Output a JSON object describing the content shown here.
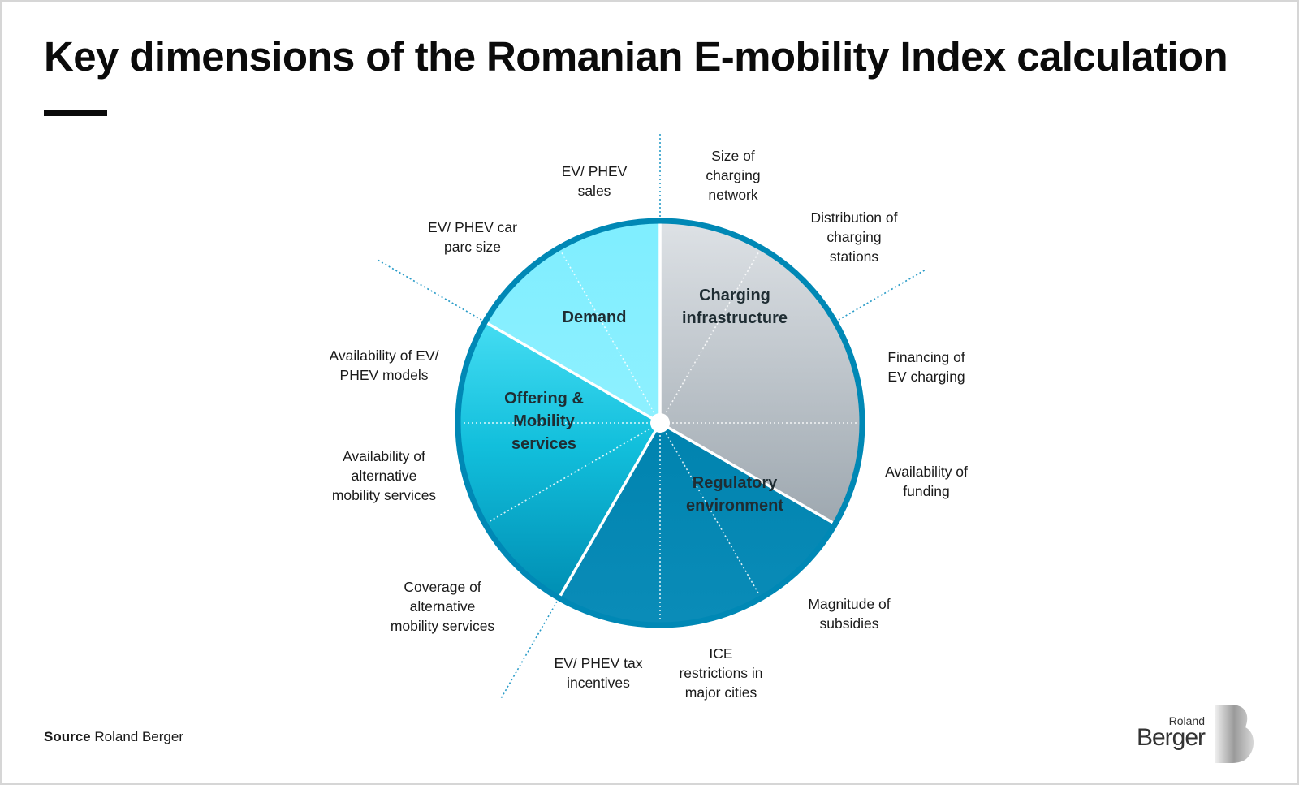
{
  "title": "Key dimensions of the Romanian E-mobility Index calculation",
  "segments": [
    {
      "name": "Demand",
      "label_lines": [
        "Demand"
      ],
      "color_top": "#7FEEFF",
      "color_bottom": "#8EF0FF"
    },
    {
      "name": "Charging infrastructure",
      "label_lines": [
        "Charging",
        "infrastructure"
      ],
      "color_top": "#DDE1E5",
      "color_bottom": "#9EA8B0"
    },
    {
      "name": "Regulatory environment",
      "label_lines": [
        "Regulatory",
        "environment"
      ],
      "color_top": "#0086B3",
      "color_bottom": "#0A8CB8"
    },
    {
      "name": "Offering & Mobility services",
      "label_lines": [
        "Offering &",
        "Mobility",
        "services"
      ],
      "color_top": "#3FD7EE",
      "color_bottom": "#0396B8"
    }
  ],
  "indicators": {
    "ev_phev_sales": [
      "EV/ PHEV",
      "sales"
    ],
    "size_charging_network": [
      "Size of",
      "charging",
      "network"
    ],
    "distribution_charging_stations": [
      "Distribution of",
      "charging",
      "stations"
    ],
    "financing_ev_charging": [
      "Financing of",
      "EV charging"
    ],
    "availability_funding": [
      "Availability of",
      "funding"
    ],
    "magnitude_subsidies": [
      "Magnitude of",
      "subsidies"
    ],
    "ice_restrictions": [
      "ICE",
      "restrictions in",
      "major cities"
    ],
    "ev_phev_tax_incentives": [
      "EV/ PHEV tax",
      "incentives"
    ],
    "coverage_alt_mobility": [
      "Coverage of",
      "alternative",
      "mobility services"
    ],
    "availability_alt_mobility": [
      "Availability of",
      "alternative",
      "mobility services"
    ],
    "availability_ev_models": [
      "Availability of EV/",
      "PHEV models"
    ],
    "car_parc_size": [
      "EV/ PHEV car",
      "parc size"
    ]
  },
  "colors": {
    "ring": "#0088B5",
    "divider": "#ffffff",
    "dotted_outer": "#2A9CC8",
    "text_dark": "#1f2d33"
  },
  "source": {
    "label": "Source",
    "text": "Roland Berger"
  },
  "logo": {
    "line1": "Roland",
    "line2": "Berger"
  }
}
